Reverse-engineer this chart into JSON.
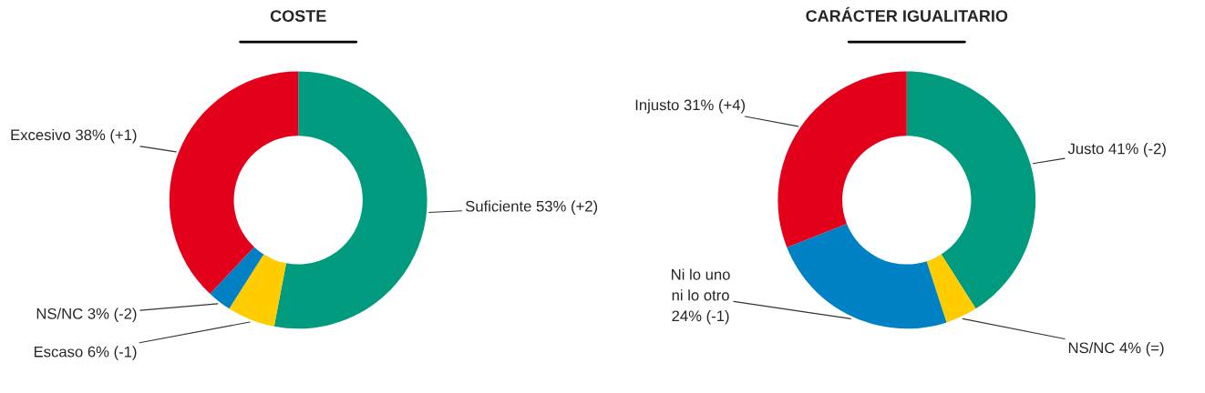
{
  "chart_data": [
    {
      "type": "donut",
      "title": "COSTE",
      "categories": [
        "Suficiente",
        "Escaso",
        "NS/NC",
        "Excesivo"
      ],
      "values": [
        53,
        6,
        3,
        38
      ],
      "colors": [
        "#009a7e",
        "#ffcc00",
        "#0081c4",
        "#e2001a"
      ],
      "value_labels": [
        "53% (+2)",
        "6% (-1)",
        "3% (-2)",
        "38% (+1)"
      ]
    },
    {
      "type": "donut",
      "title": "CARÁCTER IGUALITARIO",
      "categories": [
        "Justo",
        "NS/NC",
        "Ni lo uno\nni lo otro",
        "Injusto"
      ],
      "values": [
        41,
        4,
        24,
        31
      ],
      "colors": [
        "#009a7e",
        "#ffcc00",
        "#0081c4",
        "#e2001a"
      ],
      "value_labels": [
        "41% (-2)",
        "4% (=)",
        "24% (-1)",
        "31% (+4)"
      ]
    }
  ]
}
